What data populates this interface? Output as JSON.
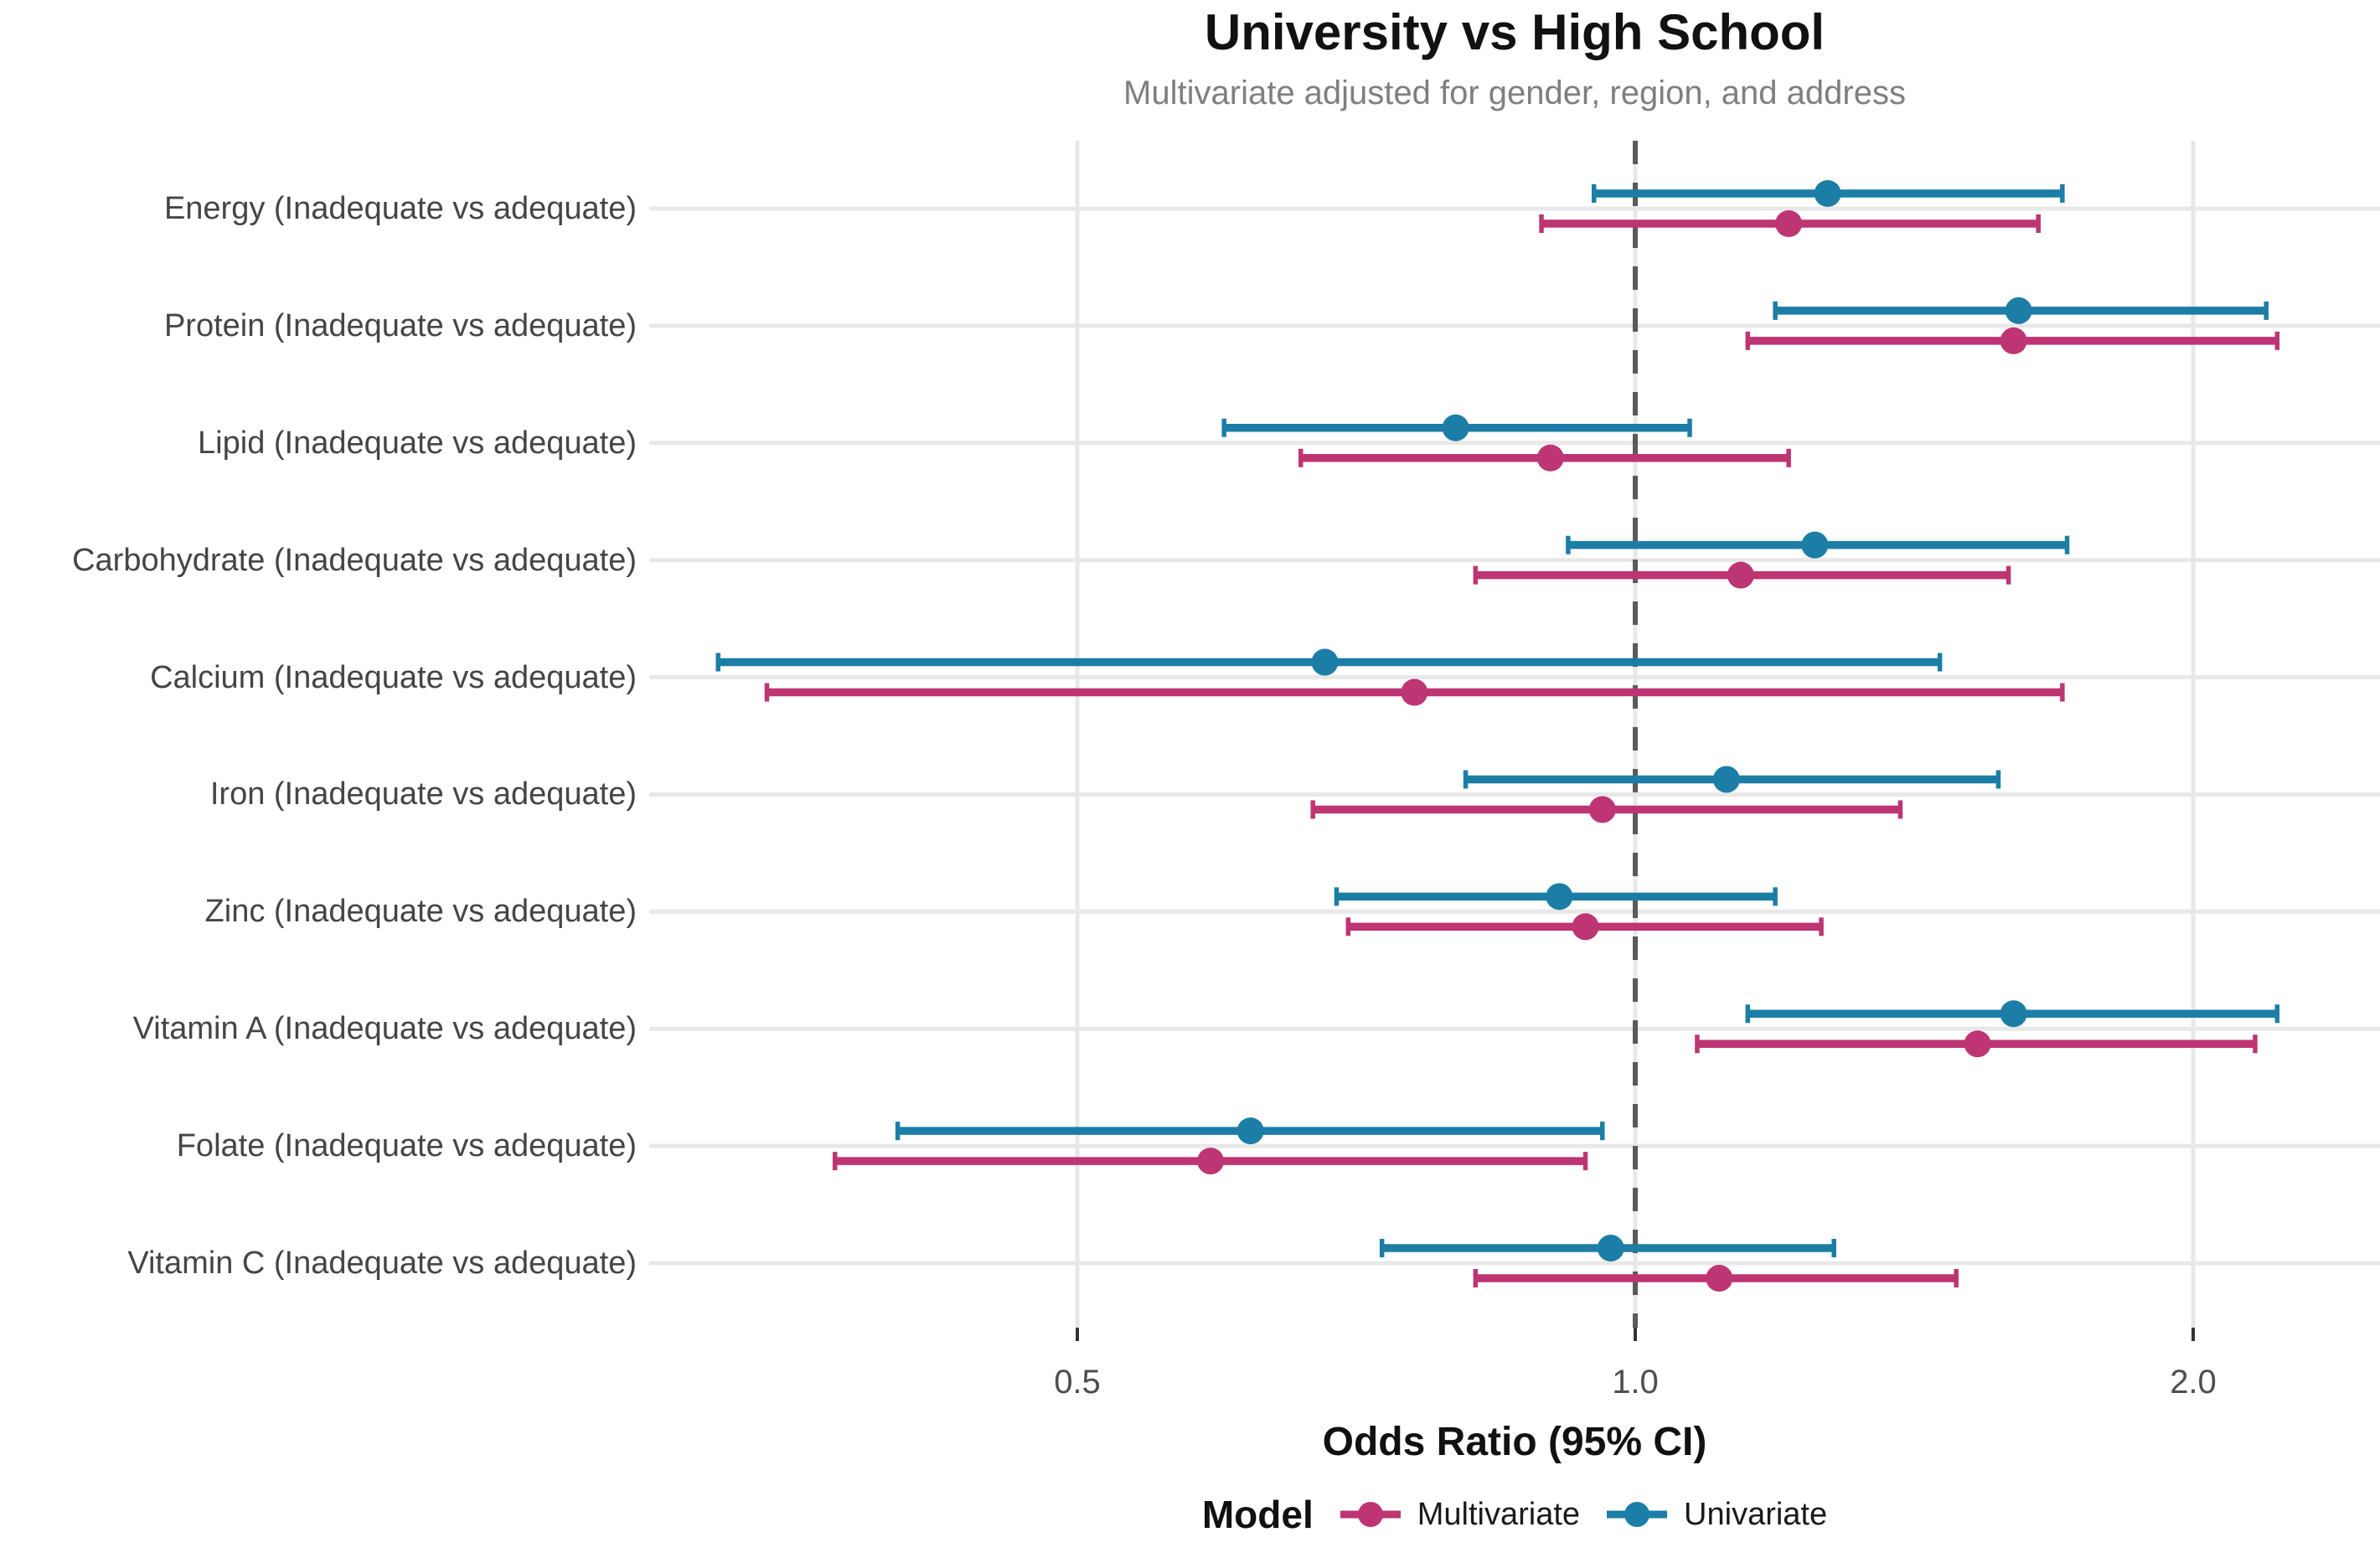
{
  "chart_data": {
    "type": "scatter",
    "variant": "forest-plot-pointrange",
    "title": "University vs High School",
    "subtitle": "Multivariate adjusted for gender, region, and address",
    "xlabel": "Odds Ratio (95% CI)",
    "x_scale": "log",
    "xlim": [
      0.3,
      2.45
    ],
    "x_ticks": [
      {
        "value": 0.5,
        "label": "0.5"
      },
      {
        "value": 1.0,
        "label": "1.0"
      },
      {
        "value": 2.0,
        "label": "2.0"
      }
    ],
    "reference_line": 1.0,
    "grid": true,
    "legend_title": "Model",
    "legend_position": "bottom",
    "categories": [
      "Energy (Inadequate vs adequate)",
      "Protein (Inadequate vs adequate)",
      "Lipid (Inadequate vs adequate)",
      "Carbohydrate (Inadequate vs adequate)",
      "Calcium (Inadequate vs adequate)",
      "Iron (Inadequate vs adequate)",
      "Zinc (Inadequate vs adequate)",
      "Vitamin A (Inadequate vs adequate)",
      "Folate (Inadequate vs adequate)",
      "Vitamin C (Inadequate vs adequate)"
    ],
    "series": [
      {
        "name": "Multivariate",
        "color": "#bd3572",
        "values": [
          {
            "or": 1.21,
            "lo": 0.89,
            "hi": 1.65
          },
          {
            "or": 1.6,
            "lo": 1.15,
            "hi": 2.22
          },
          {
            "or": 0.9,
            "lo": 0.66,
            "hi": 1.21
          },
          {
            "or": 1.14,
            "lo": 0.82,
            "hi": 1.59
          },
          {
            "or": 0.76,
            "lo": 0.34,
            "hi": 1.7
          },
          {
            "or": 0.96,
            "lo": 0.67,
            "hi": 1.39
          },
          {
            "or": 0.94,
            "lo": 0.7,
            "hi": 1.26
          },
          {
            "or": 1.53,
            "lo": 1.08,
            "hi": 2.16
          },
          {
            "or": 0.59,
            "lo": 0.37,
            "hi": 0.94
          },
          {
            "or": 1.11,
            "lo": 0.82,
            "hi": 1.49
          }
        ]
      },
      {
        "name": "Univariate",
        "color": "#1c7ea6",
        "values": [
          {
            "or": 1.27,
            "lo": 0.95,
            "hi": 1.7
          },
          {
            "or": 1.61,
            "lo": 1.19,
            "hi": 2.19
          },
          {
            "or": 0.8,
            "lo": 0.6,
            "hi": 1.07
          },
          {
            "or": 1.25,
            "lo": 0.92,
            "hi": 1.71
          },
          {
            "or": 0.68,
            "lo": 0.32,
            "hi": 1.46
          },
          {
            "or": 1.12,
            "lo": 0.81,
            "hi": 1.57
          },
          {
            "or": 0.91,
            "lo": 0.69,
            "hi": 1.19
          },
          {
            "or": 1.6,
            "lo": 1.15,
            "hi": 2.22
          },
          {
            "or": 0.62,
            "lo": 0.4,
            "hi": 0.96
          },
          {
            "or": 0.97,
            "lo": 0.73,
            "hi": 1.28
          }
        ]
      }
    ],
    "colors": {
      "multivariate": "#bd3572",
      "univariate": "#1c7ea6",
      "grid": "#e8e8e8",
      "reference_line": "#5a5a5a",
      "tick": "#333333",
      "subtitle_text": "#7f7f7f",
      "axis_text": "#4d4d4d"
    }
  }
}
